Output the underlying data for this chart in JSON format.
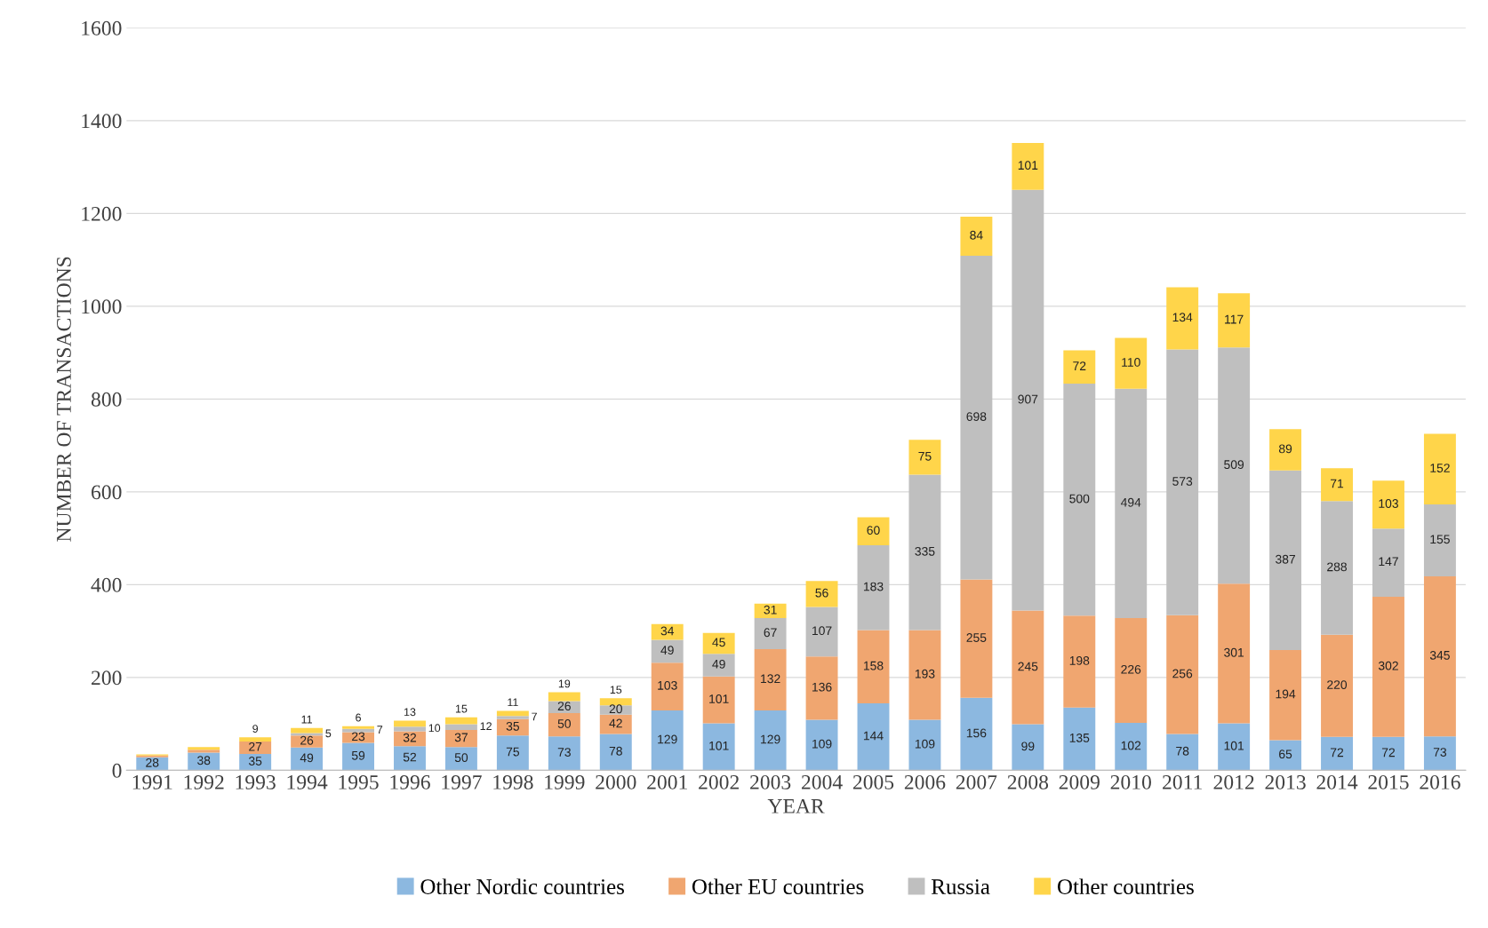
{
  "chart_data": {
    "type": "bar",
    "stacked": true,
    "xlabel": "YEAR",
    "ylabel": "NUMBER OF TRANSACTIONS",
    "categories": [
      "1991",
      "1992",
      "1993",
      "1994",
      "1995",
      "1996",
      "1997",
      "1998",
      "1999",
      "2000",
      "2001",
      "2002",
      "2003",
      "2004",
      "2005",
      "2006",
      "2007",
      "2008",
      "2009",
      "2010",
      "2011",
      "2012",
      "2013",
      "2014",
      "2015",
      "2016"
    ],
    "ylim": [
      0,
      1600
    ],
    "yticks": [
      0,
      200,
      400,
      600,
      800,
      1000,
      1200,
      1400,
      1600
    ],
    "grid": "y",
    "legend": "bottom",
    "series": [
      {
        "name": "Other Nordic countries",
        "color": "#8cb8e0",
        "values": [
          28,
          38,
          35,
          49,
          59,
          52,
          50,
          75,
          73,
          78,
          129,
          101,
          129,
          109,
          144,
          109,
          156,
          99,
          135,
          102,
          78,
          101,
          65,
          72,
          72,
          73
        ],
        "value_labels": [
          "28",
          "38",
          "35",
          "49",
          "59",
          "52",
          "50",
          "75",
          "73",
          "78",
          "129",
          "101",
          "129",
          "109",
          "144",
          "109",
          "156",
          "99",
          "135",
          "102",
          "78",
          "101",
          "65",
          "72",
          "72",
          "73"
        ]
      },
      {
        "name": "Other EU countries",
        "color": "#f0a670",
        "values": [
          4,
          6,
          27,
          26,
          23,
          32,
          37,
          35,
          50,
          42,
          103,
          101,
          132,
          136,
          158,
          193,
          255,
          245,
          198,
          226,
          256,
          301,
          194,
          220,
          302,
          345
        ],
        "value_labels": [
          null,
          null,
          "27",
          "26",
          "23",
          "32",
          "37",
          "35",
          "50",
          "42",
          "103",
          "101",
          "132",
          "136",
          "158",
          "193",
          "255",
          "245",
          "198",
          "226",
          "256",
          "301",
          "194",
          "220",
          "302",
          "345"
        ]
      },
      {
        "name": "Russia",
        "color": "#bfbfbf",
        "values": [
          null,
          null,
          null,
          5,
          7,
          10,
          12,
          7,
          26,
          20,
          49,
          49,
          67,
          107,
          183,
          335,
          698,
          907,
          500,
          494,
          573,
          509,
          387,
          288,
          147,
          155
        ],
        "value_labels": [
          null,
          null,
          null,
          "5",
          "7",
          "10",
          "12",
          "7",
          "26",
          "20",
          "49",
          "49",
          "67",
          "107",
          "183",
          "335",
          "698",
          "907",
          "500",
          "494",
          "573",
          "509",
          "387",
          "288",
          "147",
          "155"
        ]
      },
      {
        "name": "Other countries",
        "color": "#ffd54a",
        "values": [
          2,
          6,
          9,
          11,
          6,
          13,
          15,
          11,
          19,
          15,
          34,
          45,
          31,
          56,
          60,
          75,
          84,
          101,
          72,
          110,
          134,
          117,
          89,
          71,
          103,
          152
        ],
        "value_labels": [
          null,
          null,
          "9",
          "11",
          "6",
          "13",
          "15",
          "11",
          "19",
          "15",
          "34",
          "45",
          "31",
          "56",
          "60",
          "75",
          "84",
          "101",
          "72",
          "110",
          "134",
          "117",
          "89",
          "71",
          "103",
          "152"
        ]
      }
    ]
  }
}
